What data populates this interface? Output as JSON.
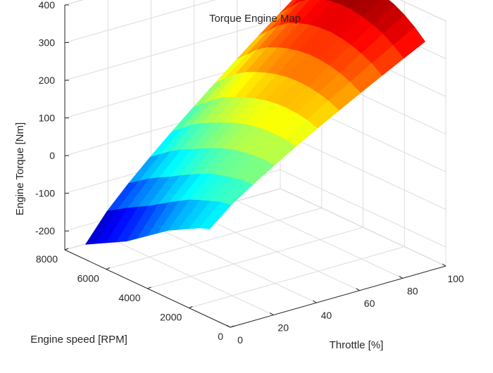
{
  "chart_data": {
    "type": "surface",
    "title": "Torque Engine Map",
    "xlabel": "Throttle [%]",
    "ylabel": "Engine speed [RPM]",
    "zlabel": "Engine Torque [Nm]",
    "xlim": [
      0,
      100
    ],
    "ylim": [
      0,
      8000
    ],
    "zlim": [
      -250,
      400
    ],
    "xticks": [
      0,
      20,
      40,
      60,
      80,
      100
    ],
    "yticks": [
      0,
      2000,
      4000,
      6000,
      8000
    ],
    "zticks": [
      -200,
      -100,
      0,
      100,
      200,
      300,
      400
    ],
    "grid": true,
    "colormap": "jet",
    "throttle": [
      0,
      10,
      20,
      30,
      40,
      50,
      60,
      70,
      80,
      90,
      100
    ],
    "speed": [
      1000,
      1500,
      2000,
      2500,
      3000,
      3500,
      4000,
      4500,
      5000,
      5500,
      6000,
      6500,
      7000
    ],
    "torque_at_full_throttle": [
      320,
      345,
      365,
      380,
      390,
      398,
      400,
      398,
      392,
      380,
      360,
      330,
      300
    ],
    "torque_at_zero_throttle": [
      -15,
      -25,
      -40,
      -55,
      -70,
      -90,
      -110,
      -130,
      -150,
      -165,
      -180,
      -195,
      -210
    ]
  }
}
